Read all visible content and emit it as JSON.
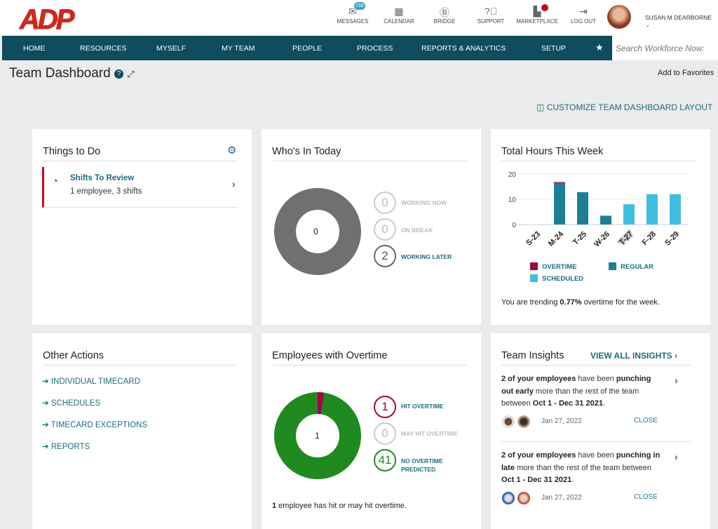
{
  "header": {
    "logo": "ADP",
    "tools": [
      {
        "label": "MESSAGES",
        "icon": "envelope-icon",
        "badge": "158"
      },
      {
        "label": "CALENDAR",
        "icon": "calendar-icon"
      },
      {
        "label": "BRIDGE",
        "icon": "bridge-icon"
      },
      {
        "label": "SUPPORT",
        "icon": "support-icon"
      },
      {
        "label": "MARKETPLACE",
        "icon": "marketplace-icon"
      },
      {
        "label": "LOG OUT",
        "icon": "logout-icon"
      }
    ],
    "user": "SUSAN M DEARBORNE"
  },
  "nav": {
    "items": [
      "HOME",
      "RESOURCES",
      "MYSELF",
      "MY TEAM",
      "PEOPLE",
      "PROCESS",
      "REPORTS & ANALYTICS",
      "SETUP"
    ],
    "search_placeholder": "Search Workforce Now:"
  },
  "page": {
    "title": "Team Dashboard",
    "add_favorites": "Add to Favorites",
    "customize": "CUSTOMIZE TEAM DASHBOARD LAYOUT"
  },
  "things": {
    "title": "Things to Do",
    "item_title": "Shifts To Review",
    "item_sub": "1 employee, 3 shifts"
  },
  "whos_in": {
    "title": "Who's In Today",
    "center": "0",
    "legend": [
      {
        "count": "0",
        "label": "WORKING NOW"
      },
      {
        "count": "0",
        "label": "ON BREAK"
      },
      {
        "count": "2",
        "label": "WORKING LATER"
      }
    ]
  },
  "hours": {
    "title": "Total Hours This Week",
    "trend_prefix": "You are trending ",
    "trend_value": "0.77%",
    "trend_suffix": " overtime for the week."
  },
  "chart_data": {
    "type": "bar",
    "stacked": true,
    "categories": [
      "S-23",
      "M-24",
      "T-25",
      "W-26",
      "T-27",
      "F-28",
      "S-29"
    ],
    "series": [
      {
        "name": "OVERTIME",
        "color": "#a3063f",
        "values": [
          0,
          0.3,
          0,
          0,
          0,
          0,
          0
        ]
      },
      {
        "name": "REGULAR",
        "color": "#1b7f98",
        "values": [
          0,
          16.5,
          12.8,
          3.5,
          0,
          0,
          0
        ]
      },
      {
        "name": "SCHEDULED",
        "color": "#3fbfdf",
        "values": [
          0,
          0,
          0,
          0,
          8,
          12,
          12
        ]
      }
    ],
    "yticks": [
      "0",
      "10",
      "20"
    ],
    "ylim": [
      0,
      20
    ],
    "grid": true,
    "legend": "bottom",
    "highlighted_category": "T-27"
  },
  "other": {
    "title": "Other Actions",
    "items": [
      "INDIVIDUAL TIMECARD",
      "SCHEDULES",
      "TIMECARD EXCEPTIONS",
      "REPORTS"
    ]
  },
  "overtime": {
    "title": "Employees with Overtime",
    "center": "1",
    "legend": [
      {
        "count": "1",
        "label": "HIT OVERTIME",
        "color": "#a3063f"
      },
      {
        "count": "0",
        "label": "MAY HIT OVERTIME",
        "color": "#bbbbbb"
      },
      {
        "count": "41",
        "label": "NO OVERTIME PREDICTED",
        "color": "#1f8a1f"
      }
    ],
    "footer_count": "1",
    "footer_text": " employee has hit or may hit overtime."
  },
  "insights": {
    "title": "Team Insights",
    "view_all": "VIEW ALL INSIGHTS",
    "items": [
      {
        "a": "2 of your employees",
        "b": " have been ",
        "c": "punching out early",
        "d": " more than the rest of the team between ",
        "e": "Oct 1 - Dec 31 2021",
        "f": ".",
        "date": "Jan 27, 2022",
        "close": "CLOSE"
      },
      {
        "a": "2 of your employees",
        "b": " have been ",
        "c": "punching in late",
        "d": " more than the rest of the team between ",
        "e": "Oct 1 - Dec 31 2021",
        "f": ".",
        "date": "Jan 27, 2022",
        "close": "CLOSE"
      }
    ]
  }
}
